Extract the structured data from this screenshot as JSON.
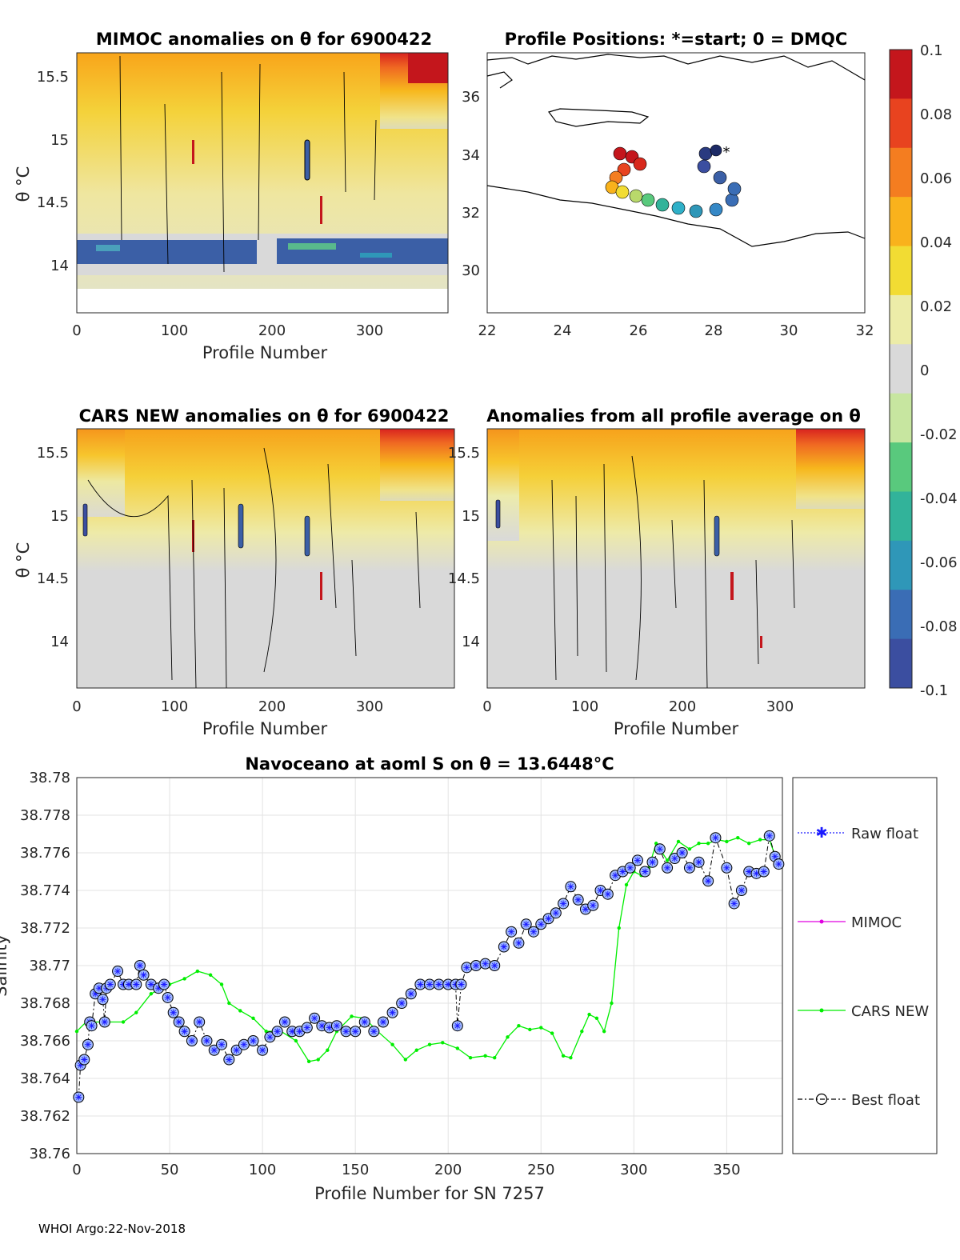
{
  "footer": "WHOI Argo:22-Nov-2018",
  "colorbar": {
    "ticks": [
      "0.1",
      "0.08",
      "0.06",
      "0.04",
      "0.02",
      "0",
      "-0.02",
      "-0.04",
      "-0.06",
      "-0.08",
      "-0.1"
    ],
    "colors": [
      "#c4161c",
      "#e8431f",
      "#f47d20",
      "#f9b21c",
      "#f2dc33",
      "#ececa8",
      "#d9d9d9",
      "#c7e6a0",
      "#59c97d",
      "#32b39a",
      "#2f97b8",
      "#3a6db5",
      "#3b4ea0"
    ]
  },
  "panel_mimoc": {
    "title": "MIMOC anomalies on θ  for 6900422",
    "ylabel": "θ °C",
    "xlabel": "Profile Number",
    "xticks": [
      "0",
      "100",
      "200",
      "300"
    ],
    "yticks": [
      "15.5",
      "15",
      "14.5",
      "14"
    ]
  },
  "panel_positions": {
    "title": "Profile Positions: *=start; 0 = DMQC",
    "xticks": [
      "22",
      "24",
      "26",
      "28",
      "30",
      "32"
    ],
    "yticks": [
      "36",
      "34",
      "32",
      "30"
    ]
  },
  "panel_cars": {
    "title": "CARS NEW anomalies on θ for 6900422",
    "ylabel": "θ °C",
    "xlabel": "Profile Number",
    "xticks": [
      "0",
      "100",
      "200",
      "300"
    ],
    "yticks": [
      "15.5",
      "15",
      "14.5",
      "14"
    ]
  },
  "panel_avg": {
    "title": "Anomalies from all profile average on θ",
    "xlabel": "Profile Number",
    "xticks": [
      "0",
      "100",
      "200",
      "300"
    ],
    "yticks": [
      "15.5",
      "15",
      "14.5",
      "14"
    ]
  },
  "chart_data": [
    {
      "type": "line",
      "title": "Navoceano at aoml S on θ = 13.6448°C",
      "xlabel": "Profile Number for SN 7257",
      "ylabel": "Salinity",
      "xlim": [
        0,
        380
      ],
      "ylim": [
        38.76,
        38.78
      ],
      "xticks": [
        "0",
        "50",
        "100",
        "150",
        "200",
        "250",
        "300",
        "350"
      ],
      "yticks": [
        "38.78",
        "38.778",
        "38.776",
        "38.774",
        "38.772",
        "38.77",
        "38.768",
        "38.766",
        "38.764",
        "38.762",
        "38.76"
      ],
      "legend": [
        "Raw float",
        "MIMOC",
        "CARS NEW",
        "Best float"
      ],
      "series": [
        {
          "name": "CARS NEW",
          "color": "#00ee00",
          "points": [
            [
              0,
              38.7665
            ],
            [
              5,
              38.767
            ],
            [
              15,
              38.767
            ],
            [
              25,
              38.767
            ],
            [
              32,
              38.7675
            ],
            [
              40,
              38.7685
            ],
            [
              50,
              38.769
            ],
            [
              58,
              38.7693
            ],
            [
              65,
              38.7697
            ],
            [
              72,
              38.7695
            ],
            [
              78,
              38.769
            ],
            [
              82,
              38.768
            ],
            [
              88,
              38.7676
            ],
            [
              95,
              38.7672
            ],
            [
              102,
              38.7665
            ],
            [
              110,
              38.7665
            ],
            [
              118,
              38.766
            ],
            [
              125,
              38.7649
            ],
            [
              130,
              38.765
            ],
            [
              135,
              38.7655
            ],
            [
              140,
              38.7665
            ],
            [
              148,
              38.7673
            ],
            [
              155,
              38.7672
            ],
            [
              162,
              38.7665
            ],
            [
              170,
              38.7658
            ],
            [
              177,
              38.765
            ],
            [
              183,
              38.7655
            ],
            [
              190,
              38.7658
            ],
            [
              197,
              38.7659
            ],
            [
              205,
              38.7656
            ],
            [
              212,
              38.7651
            ],
            [
              220,
              38.7652
            ],
            [
              225,
              38.7651
            ],
            [
              232,
              38.7662
            ],
            [
              238,
              38.7668
            ],
            [
              244,
              38.7666
            ],
            [
              250,
              38.7667
            ],
            [
              256,
              38.7664
            ],
            [
              262,
              38.7652
            ],
            [
              266,
              38.7651
            ],
            [
              272,
              38.7665
            ],
            [
              276,
              38.7674
            ],
            [
              280,
              38.7672
            ],
            [
              284,
              38.7665
            ],
            [
              288,
              38.768
            ],
            [
              292,
              38.772
            ],
            [
              296,
              38.7743
            ],
            [
              300,
              38.775
            ],
            [
              304,
              38.7748
            ],
            [
              308,
              38.7752
            ],
            [
              312,
              38.7765
            ],
            [
              318,
              38.7756
            ],
            [
              324,
              38.7766
            ],
            [
              330,
              38.7762
            ],
            [
              335,
              38.7765
            ],
            [
              340,
              38.7765
            ],
            [
              345,
              38.7767
            ],
            [
              350,
              38.7766
            ],
            [
              356,
              38.7768
            ],
            [
              362,
              38.7765
            ],
            [
              368,
              38.7767
            ],
            [
              373,
              38.7767
            ],
            [
              378,
              38.7753
            ]
          ]
        },
        {
          "name": "Best float",
          "color": "#000000",
          "points": [
            [
              1,
              38.763
            ],
            [
              2,
              38.7647
            ],
            [
              4,
              38.765
            ],
            [
              6,
              38.7658
            ],
            [
              7,
              38.767
            ],
            [
              8,
              38.7668
            ],
            [
              10,
              38.7685
            ],
            [
              12,
              38.7688
            ],
            [
              14,
              38.7682
            ],
            [
              15,
              38.767
            ],
            [
              16,
              38.7688
            ],
            [
              18,
              38.769
            ],
            [
              22,
              38.7697
            ],
            [
              25,
              38.769
            ],
            [
              28,
              38.769
            ],
            [
              32,
              38.769
            ],
            [
              34,
              38.77
            ],
            [
              36,
              38.7695
            ],
            [
              40,
              38.769
            ],
            [
              44,
              38.7688
            ],
            [
              47,
              38.769
            ],
            [
              49,
              38.7683
            ],
            [
              52,
              38.7675
            ],
            [
              55,
              38.767
            ],
            [
              58,
              38.7665
            ],
            [
              62,
              38.766
            ],
            [
              66,
              38.767
            ],
            [
              70,
              38.766
            ],
            [
              74,
              38.7655
            ],
            [
              78,
              38.7658
            ],
            [
              82,
              38.765
            ],
            [
              86,
              38.7655
            ],
            [
              90,
              38.7658
            ],
            [
              95,
              38.766
            ],
            [
              100,
              38.7655
            ],
            [
              104,
              38.7662
            ],
            [
              108,
              38.7665
            ],
            [
              112,
              38.767
            ],
            [
              116,
              38.7665
            ],
            [
              120,
              38.7665
            ],
            [
              124,
              38.7667
            ],
            [
              128,
              38.7672
            ],
            [
              132,
              38.7668
            ],
            [
              136,
              38.7667
            ],
            [
              140,
              38.7668
            ],
            [
              145,
              38.7665
            ],
            [
              150,
              38.7665
            ],
            [
              155,
              38.767
            ],
            [
              160,
              38.7665
            ],
            [
              165,
              38.767
            ],
            [
              170,
              38.7675
            ],
            [
              175,
              38.768
            ],
            [
              180,
              38.7685
            ],
            [
              185,
              38.769
            ],
            [
              190,
              38.769
            ],
            [
              195,
              38.769
            ],
            [
              200,
              38.769
            ],
            [
              204,
              38.769
            ],
            [
              205,
              38.7668
            ],
            [
              207,
              38.769
            ],
            [
              210,
              38.7699
            ],
            [
              215,
              38.77
            ],
            [
              220,
              38.7701
            ],
            [
              225,
              38.77
            ],
            [
              230,
              38.771
            ],
            [
              234,
              38.7718
            ],
            [
              238,
              38.7712
            ],
            [
              242,
              38.7722
            ],
            [
              246,
              38.7718
            ],
            [
              250,
              38.7722
            ],
            [
              254,
              38.7725
            ],
            [
              258,
              38.7728
            ],
            [
              262,
              38.7733
            ],
            [
              266,
              38.7742
            ],
            [
              270,
              38.7735
            ],
            [
              274,
              38.773
            ],
            [
              278,
              38.7732
            ],
            [
              282,
              38.774
            ],
            [
              286,
              38.7738
            ],
            [
              290,
              38.7748
            ],
            [
              294,
              38.775
            ],
            [
              298,
              38.7752
            ],
            [
              302,
              38.7756
            ],
            [
              306,
              38.775
            ],
            [
              310,
              38.7755
            ],
            [
              314,
              38.7762
            ],
            [
              318,
              38.7752
            ],
            [
              322,
              38.7757
            ],
            [
              326,
              38.776
            ],
            [
              330,
              38.7752
            ],
            [
              335,
              38.7755
            ],
            [
              340,
              38.7745
            ],
            [
              344,
              38.7768
            ],
            [
              350,
              38.7752
            ],
            [
              354,
              38.7733
            ],
            [
              358,
              38.774
            ],
            [
              362,
              38.775
            ],
            [
              366,
              38.7749
            ],
            [
              370,
              38.775
            ],
            [
              373,
              38.7769
            ],
            [
              376,
              38.7758
            ],
            [
              378,
              38.7754
            ]
          ]
        }
      ]
    }
  ]
}
